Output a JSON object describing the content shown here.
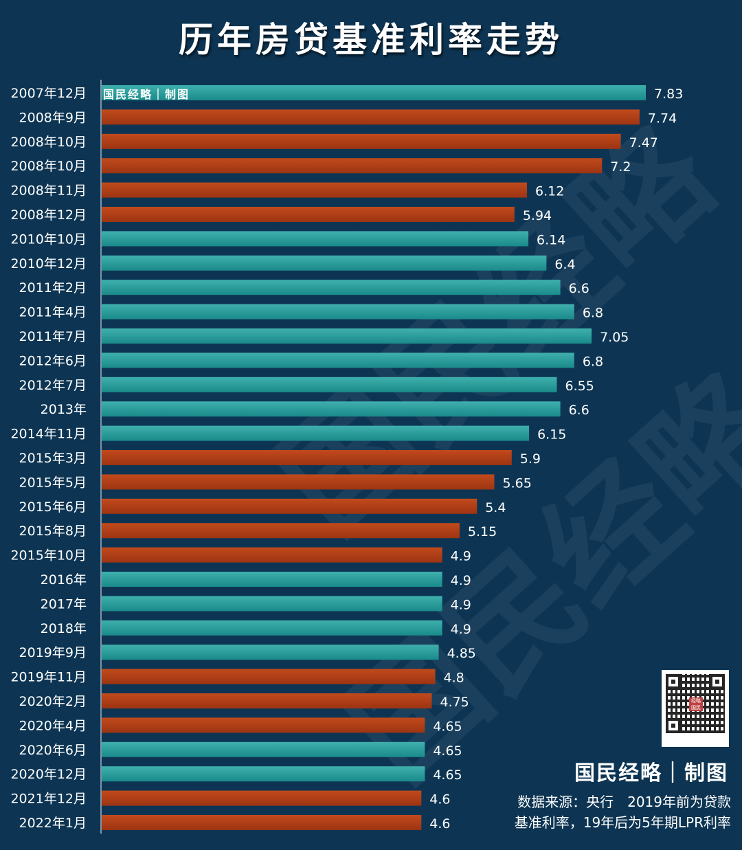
{
  "title": "历年房贷基准利率走势",
  "watermark": "国民经略",
  "bar_credit": "国民经略｜制图",
  "brand": "国民经略｜制图",
  "source_line1": "数据来源：央行　2019年前为贷款",
  "source_line2": "基准利率，19年后为5年期LPR利率",
  "qr_seal_text": "经略国民",
  "colors": {
    "background": "#0d3553",
    "teal": "#1a8a8a",
    "red": "#9c3412",
    "teal_light": "#3fb0ad",
    "red_light": "#c24a1c"
  },
  "chart_data": {
    "type": "bar",
    "orientation": "horizontal",
    "xlim": [
      0,
      7.83
    ],
    "categories": [
      "2007年12月",
      "2008年9月",
      "2008年10月",
      "2008年10月",
      "2008年11月",
      "2008年12月",
      "2010年10月",
      "2010年12月",
      "2011年2月",
      "2011年4月",
      "2011年7月",
      "2012年6月",
      "2012年7月",
      "2013年",
      "2014年11月",
      "2015年3月",
      "2015年5月",
      "2015年6月",
      "2015年8月",
      "2015年10月",
      "2016年",
      "2017年",
      "2018年",
      "2019年9月",
      "2019年11月",
      "2020年2月",
      "2020年4月",
      "2020年6月",
      "2020年12月",
      "2021年12月",
      "2022年1月"
    ],
    "values": [
      7.83,
      7.74,
      7.47,
      7.2,
      6.12,
      5.94,
      6.14,
      6.4,
      6.6,
      6.8,
      7.05,
      6.8,
      6.55,
      6.6,
      6.15,
      5.9,
      5.65,
      5.4,
      5.15,
      4.9,
      4.9,
      4.9,
      4.9,
      4.85,
      4.8,
      4.75,
      4.65,
      4.65,
      4.65,
      4.6,
      4.6
    ],
    "value_labels": [
      "7.83",
      "7.74",
      "7.47",
      "7.2",
      "6.12",
      "5.94",
      "6.14",
      "6.4",
      "6.6",
      "6.8",
      "7.05",
      "6.8",
      "6.55",
      "6.6",
      "6.15",
      "5.9",
      "5.65",
      "5.4",
      "5.15",
      "4.9",
      "4.9",
      "4.9",
      "4.9",
      "4.85",
      "4.8",
      "4.75",
      "4.65",
      "4.65",
      "4.65",
      "4.6",
      "4.6"
    ],
    "bar_colors": [
      "teal",
      "red",
      "red",
      "red",
      "red",
      "red",
      "teal",
      "teal",
      "teal",
      "teal",
      "teal",
      "teal",
      "teal",
      "teal",
      "teal",
      "red",
      "red",
      "red",
      "red",
      "red",
      "teal",
      "teal",
      "teal",
      "teal",
      "red",
      "red",
      "red",
      "teal",
      "teal",
      "red",
      "red"
    ]
  }
}
